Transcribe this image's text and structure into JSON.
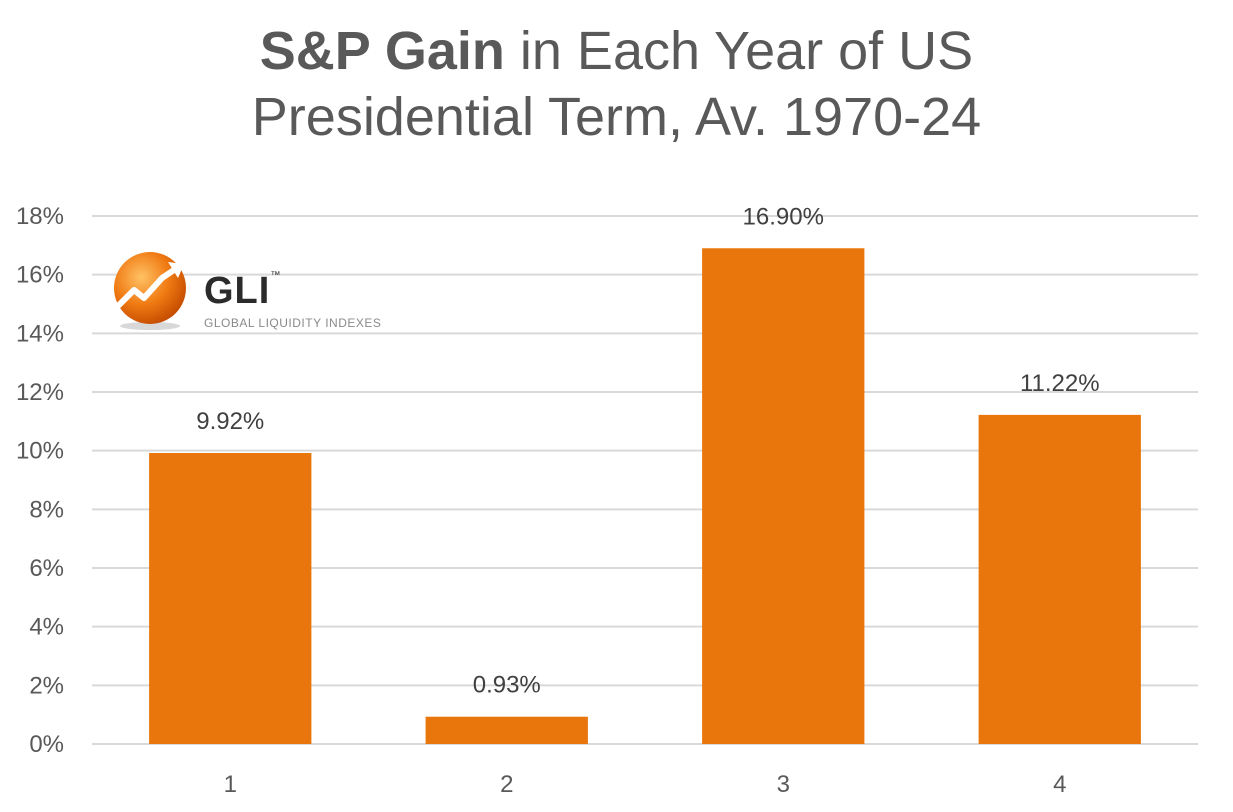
{
  "title": {
    "bold": "S&P Gain",
    "rest": "in Each Year of US",
    "line2": "Presidential Term, Av. 1970-24"
  },
  "logo": {
    "name": "GLI",
    "tm": "™",
    "tagline": "GLOBAL LIQUIDITY INDEXES"
  },
  "colors": {
    "bar": "#E8760C",
    "grid": "#D9D9D9",
    "text": "#595959"
  },
  "chart_data": {
    "type": "bar",
    "title": "S&P Gain in Each Year of US Presidential Term, Av. 1970-24",
    "categories": [
      "1",
      "2",
      "3",
      "4"
    ],
    "values": [
      9.92,
      0.93,
      16.9,
      11.22
    ],
    "data_labels": [
      "9.92%",
      "0.93%",
      "16.90%",
      "11.22%"
    ],
    "yticks": [
      "0%",
      "2%",
      "4%",
      "6%",
      "8%",
      "10%",
      "12%",
      "14%",
      "16%",
      "18%"
    ],
    "ylim": [
      0,
      18
    ],
    "xlabel": "",
    "ylabel": "",
    "grid": true,
    "legend": "none"
  }
}
